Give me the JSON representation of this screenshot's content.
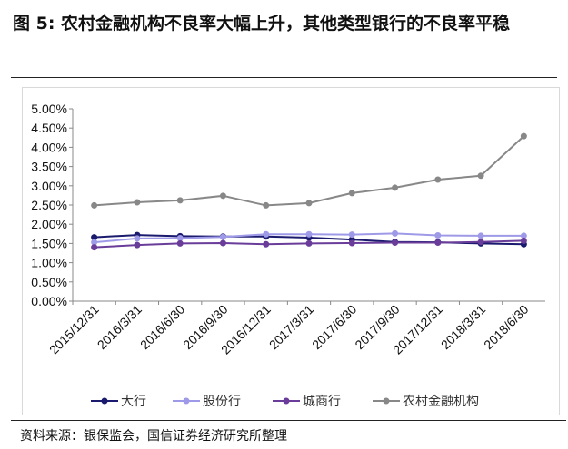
{
  "title": "图 5: 农村金融机构不良率大幅上升，其他类型银行的不良率平稳",
  "source": "资料来源：银保监会，国信证券经济研究所整理",
  "chart_data": {
    "type": "line",
    "categories": [
      "2015/12/31",
      "2016/3/31",
      "2016/6/30",
      "2016/9/30",
      "2016/12/31",
      "2017/3/31",
      "2017/6/30",
      "2017/9/30",
      "2017/12/31",
      "2018/3/31",
      "2018/6/30"
    ],
    "ylim": [
      0,
      5
    ],
    "yticks": [
      "0.00%",
      "0.50%",
      "1.00%",
      "1.50%",
      "2.00%",
      "2.50%",
      "3.00%",
      "3.50%",
      "4.00%",
      "4.50%",
      "5.00%"
    ],
    "legend_position": "bottom",
    "series": [
      {
        "name": "大行",
        "color": "#1a1a6e",
        "values": [
          1.66,
          1.72,
          1.69,
          1.68,
          1.68,
          1.65,
          1.6,
          1.54,
          1.53,
          1.5,
          1.48
        ]
      },
      {
        "name": "股份行",
        "color": "#9f9ae8",
        "values": [
          1.53,
          1.63,
          1.64,
          1.67,
          1.74,
          1.74,
          1.73,
          1.76,
          1.71,
          1.7,
          1.7
        ]
      },
      {
        "name": "城商行",
        "color": "#6a3d9a",
        "values": [
          1.4,
          1.46,
          1.5,
          1.51,
          1.48,
          1.5,
          1.51,
          1.52,
          1.52,
          1.54,
          1.57
        ]
      },
      {
        "name": "农村金融机构",
        "color": "#888888",
        "values": [
          2.49,
          2.57,
          2.62,
          2.74,
          2.49,
          2.55,
          2.81,
          2.95,
          3.16,
          3.26,
          4.29
        ]
      }
    ]
  }
}
